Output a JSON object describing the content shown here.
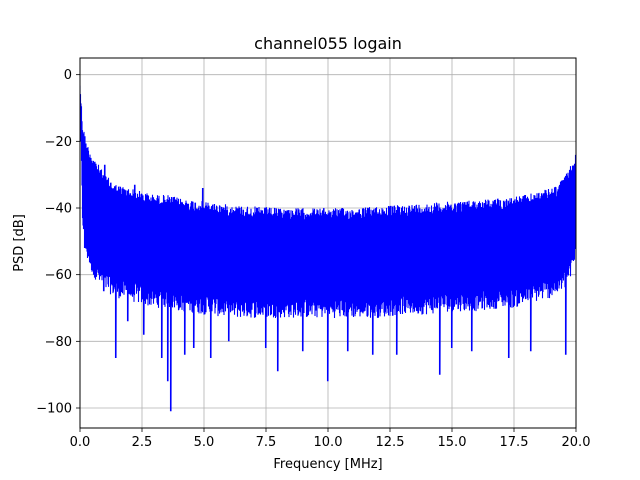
{
  "chart_data": {
    "type": "line",
    "title": "channel055 logain",
    "xlabel": "Frequency [MHz]",
    "ylabel": "PSD [dB]",
    "xlim": [
      0.0,
      20.0
    ],
    "ylim": [
      -106,
      5
    ],
    "xticks": [
      0.0,
      2.5,
      5.0,
      7.5,
      10.0,
      12.5,
      15.0,
      17.5,
      20.0
    ],
    "xtick_labels": [
      "0.0",
      "2.5",
      "5.0",
      "7.5",
      "10.0",
      "12.5",
      "15.0",
      "17.5",
      "20.0"
    ],
    "yticks": [
      0,
      -20,
      -40,
      -60,
      -80,
      -100
    ],
    "ytick_labels": [
      "0",
      "−20",
      "−40",
      "−60",
      "−80",
      "−100"
    ],
    "grid": true,
    "series": [
      {
        "color": "#0000ff",
        "x": [
          0.0,
          0.1,
          0.25,
          0.5,
          0.75,
          1.0,
          1.5,
          2.0,
          2.5,
          3.0,
          3.5,
          4.0,
          5.0,
          6.0,
          7.0,
          8.0,
          9.0,
          10.0,
          11.0,
          12.0,
          13.0,
          14.0,
          15.0,
          16.0,
          17.0,
          17.5,
          18.0,
          18.5,
          19.0,
          19.25,
          19.5,
          19.75,
          19.9,
          20.0
        ],
        "upper": [
          -1,
          -14,
          -20,
          -24,
          -27,
          -30,
          -33,
          -34,
          -35,
          -36,
          -36,
          -37,
          -38,
          -39,
          -39.5,
          -40,
          -40,
          -40,
          -40,
          -39.5,
          -39,
          -38.5,
          -38,
          -37.5,
          -37,
          -36.5,
          -36,
          -35,
          -34,
          -33,
          -31,
          -28,
          -25,
          -23
        ],
        "lower": [
          -10,
          -45,
          -55,
          -60,
          -63,
          -65,
          -67,
          -68,
          -69,
          -70,
          -70,
          -71,
          -72,
          -73,
          -73,
          -73,
          -73,
          -73,
          -73,
          -73,
          -72,
          -72,
          -71,
          -71,
          -70,
          -70,
          -69,
          -68,
          -67,
          -66,
          -65,
          -62,
          -58,
          -55
        ],
        "spikes": [
          {
            "x": 0.2,
            "y": -52
          },
          {
            "x": 0.55,
            "y": -60
          },
          {
            "x": 0.95,
            "y": -65
          },
          {
            "x": 1.45,
            "y": -85
          },
          {
            "x": 1.95,
            "y": -74
          },
          {
            "x": 2.6,
            "y": -78
          },
          {
            "x": 3.3,
            "y": -85
          },
          {
            "x": 3.55,
            "y": -92
          },
          {
            "x": 3.65,
            "y": -101
          },
          {
            "x": 4.25,
            "y": -84
          },
          {
            "x": 4.6,
            "y": -82
          },
          {
            "x": 5.3,
            "y": -85
          },
          {
            "x": 6.0,
            "y": -80
          },
          {
            "x": 7.5,
            "y": -82
          },
          {
            "x": 8.0,
            "y": -89
          },
          {
            "x": 9.0,
            "y": -83
          },
          {
            "x": 10.0,
            "y": -92
          },
          {
            "x": 10.8,
            "y": -83
          },
          {
            "x": 11.8,
            "y": -84
          },
          {
            "x": 12.8,
            "y": -84
          },
          {
            "x": 14.5,
            "y": -90
          },
          {
            "x": 15.0,
            "y": -82
          },
          {
            "x": 15.8,
            "y": -83
          },
          {
            "x": 17.3,
            "y": -85
          },
          {
            "x": 18.2,
            "y": -83
          },
          {
            "x": 19.6,
            "y": -84
          }
        ],
        "peaks": [
          {
            "x": 4.95,
            "y": -34
          },
          {
            "x": 2.2,
            "y": -33
          },
          {
            "x": 1.0,
            "y": -27
          }
        ]
      }
    ]
  }
}
